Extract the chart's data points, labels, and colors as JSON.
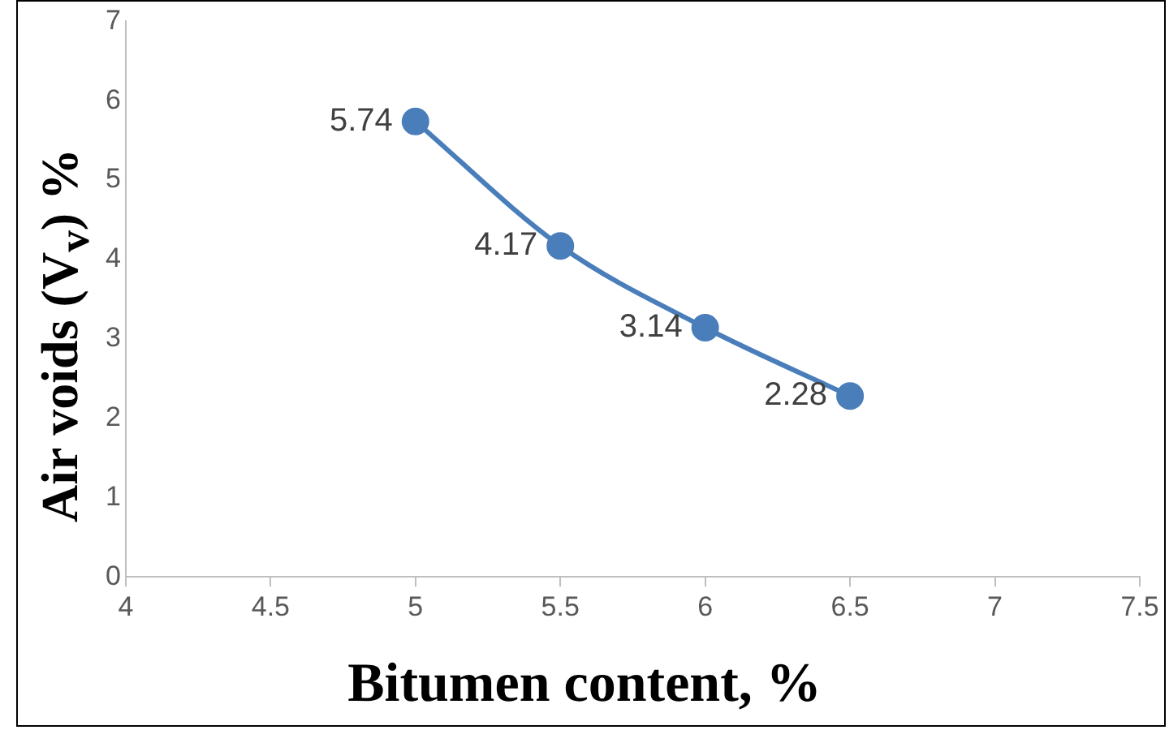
{
  "chart_data": {
    "type": "line",
    "xlabel": "Bitumen content, %",
    "ylabel": "Air voids (V$_{v}$) %",
    "x": [
      5,
      5.5,
      6,
      6.5
    ],
    "series": [
      {
        "color": "#4a7ebb",
        "values": [
          5.74,
          4.17,
          3.14,
          2.28
        ]
      }
    ],
    "xlim": [
      4,
      7.5
    ],
    "xticks": [
      4,
      4.5,
      5,
      5.5,
      6,
      6.5,
      7,
      7.5
    ],
    "ylim": [
      0,
      7
    ],
    "yticks": [
      0,
      1,
      2,
      3,
      4,
      5,
      6,
      7
    ],
    "grid": false,
    "legend": false,
    "marker": "circle",
    "line_style": "solid",
    "data_labels": true
  }
}
